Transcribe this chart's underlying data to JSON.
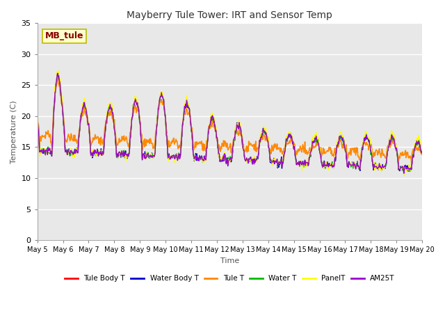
{
  "title": "Mayberry Tule Tower: IRT and Sensor Temp",
  "xlabel": "Time",
  "ylabel": "Temperature (C)",
  "ylim": [
    0,
    35
  ],
  "yticks": [
    0,
    5,
    10,
    15,
    20,
    25,
    30,
    35
  ],
  "series": {
    "Tule Body T": {
      "color": "#ff0000",
      "lw": 1.0
    },
    "Water Body T": {
      "color": "#0000cc",
      "lw": 1.0
    },
    "Tule T": {
      "color": "#ff8800",
      "lw": 1.2
    },
    "Water T": {
      "color": "#00bb00",
      "lw": 1.0
    },
    "PanelT": {
      "color": "#ffff00",
      "lw": 1.0
    },
    "AM25T": {
      "color": "#9900cc",
      "lw": 1.0
    }
  },
  "annotation_text": "MB_tule",
  "annotation_color": "#880000",
  "annotation_bg": "#ffffcc",
  "annotation_border": "#bbbb00",
  "xtick_labels": [
    "May 5",
    "May 6",
    "May 7",
    "May 8",
    "May 9",
    "May 10",
    "May 11",
    "May 12",
    "May 13",
    "May 14",
    "May 15",
    "May 16",
    "May 17",
    "May 18",
    "May 19",
    "May 20"
  ],
  "background_color": "#e8e8e8",
  "grid_color": "#ffffff",
  "figsize": [
    6.4,
    4.8
  ],
  "dpi": 100
}
